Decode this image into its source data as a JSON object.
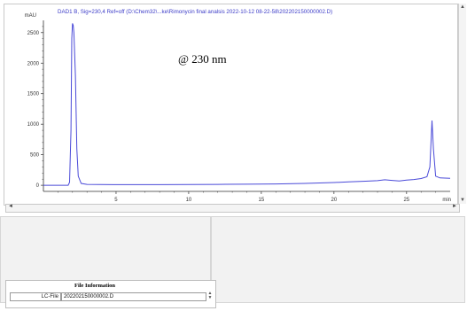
{
  "chromatogram": {
    "title": "DAD1 B, Sig=230,4 Ref=off (D:\\Chem32\\...ke\\Rimonycin final analsis 2022-10-12 08-22-58\\202202150000002.D)",
    "annotation": "@ 230 nm",
    "colors": {
      "trace": "#4a4ad8",
      "axis": "#333333",
      "title": "#3c3cc8"
    }
  },
  "chart_data": {
    "type": "line",
    "title": "DAD1 B, Sig=230,4 Ref=off (D:\\Chem32\\...ke\\Rimonycin final analsis 2022-10-12 08-22-58\\202202150000002.D)",
    "xlabel": "min",
    "ylabel": "mAU",
    "xlim": [
      0,
      28
    ],
    "ylim": [
      -100,
      2700
    ],
    "x_ticks": [
      5,
      10,
      15,
      20,
      25
    ],
    "y_ticks": [
      0,
      500,
      1000,
      1500,
      2000,
      2500
    ],
    "grid": false,
    "series": [
      {
        "values_xy": [
          [
            0,
            0
          ],
          [
            1.7,
            0
          ],
          [
            1.8,
            50
          ],
          [
            1.9,
            900
          ],
          [
            1.95,
            2400
          ],
          [
            2.0,
            2650
          ],
          [
            2.05,
            2620
          ],
          [
            2.1,
            2500
          ],
          [
            2.2,
            1800
          ],
          [
            2.3,
            600
          ],
          [
            2.4,
            150
          ],
          [
            2.6,
            30
          ],
          [
            3.0,
            15
          ],
          [
            5,
            10
          ],
          [
            8,
            10
          ],
          [
            10,
            12
          ],
          [
            12,
            14
          ],
          [
            14,
            18
          ],
          [
            16,
            22
          ],
          [
            18,
            30
          ],
          [
            20,
            45
          ],
          [
            21,
            55
          ],
          [
            22,
            65
          ],
          [
            23,
            75
          ],
          [
            23.5,
            90
          ],
          [
            24,
            80
          ],
          [
            24.5,
            70
          ],
          [
            25,
            85
          ],
          [
            25.5,
            95
          ],
          [
            26,
            110
          ],
          [
            26.4,
            140
          ],
          [
            26.6,
            300
          ],
          [
            26.75,
            1060
          ],
          [
            26.85,
            600
          ],
          [
            27,
            150
          ],
          [
            27.3,
            120
          ],
          [
            28,
            115
          ]
        ]
      }
    ]
  },
  "file_info": {
    "heading": "File Information",
    "label": "LC-File",
    "value": "202202150000002.D"
  }
}
